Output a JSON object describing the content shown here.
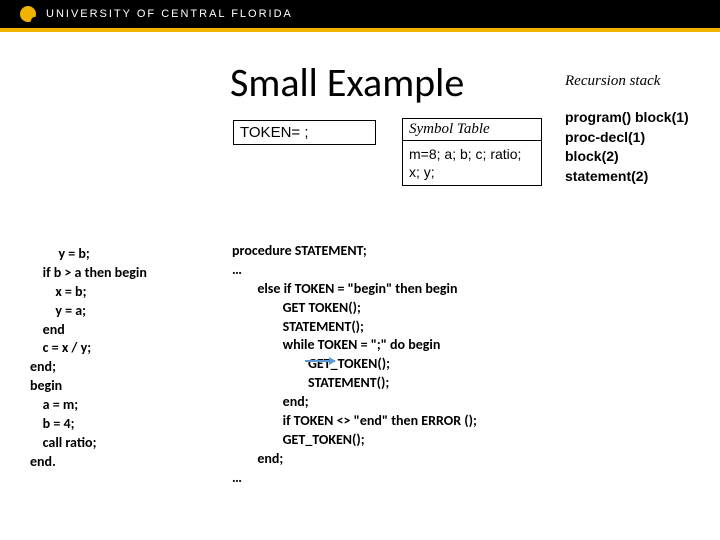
{
  "header": {
    "org": "UNIVERSITY OF CENTRAL FLORIDA",
    "bg_color": "#000000",
    "accent_color": "#f0b400",
    "text_color": "#ffffff"
  },
  "title": "Small Example",
  "token_box": "TOKEN= ;",
  "symbol_table": {
    "header": "Symbol Table",
    "body": "m=8; a; b; c; ratio; x; y;"
  },
  "recursion": {
    "header": "Recursion stack",
    "items": "program()\nblock(1)\nproc-decl(1)\nblock(2)\nstatement(2)"
  },
  "left_code": "         y = b;\n    if b > a then begin\n        x = b;\n        y = a;\n    end\n    c = x / y;\nend;\nbegin\n    a = m;\n    b = 4;\n    call ratio;\nend.",
  "right_code": "procedure STATEMENT;\n…\n        else if TOKEN = \"begin\" then begin\n                GET TOKEN();\n                STATEMENT();\n                while TOKEN = \";\" do begin\n                        GET_TOKEN();\n                        STATEMENT();\n                end;\n                if TOKEN <> \"end\" then ERROR ();\n                GET_TOKEN();\n        end;\n…",
  "arrow_color": "#5a9bd5"
}
